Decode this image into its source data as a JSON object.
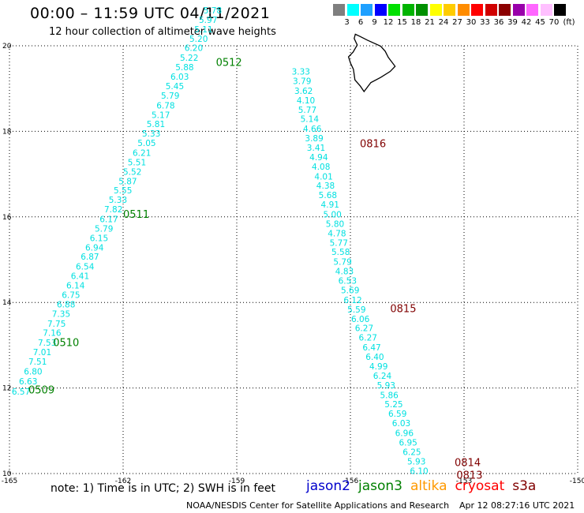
{
  "header": {
    "title": "00:00 – 11:59 UTC 04/11/2021",
    "subtitle": "12 hour collection of altimeter wave heights"
  },
  "legend": {
    "unit": "(ft)",
    "bins": [
      {
        "label": "3",
        "color": "#7f7f7f"
      },
      {
        "label": "6",
        "color": "#00ffff"
      },
      {
        "label": "9",
        "color": "#1ea0ff"
      },
      {
        "label": "12",
        "color": "#0000ff"
      },
      {
        "label": "15",
        "color": "#00e000"
      },
      {
        "label": "18",
        "color": "#00b400"
      },
      {
        "label": "21",
        "color": "#009000"
      },
      {
        "label": "24",
        "color": "#ffff00"
      },
      {
        "label": "27",
        "color": "#ffcc00"
      },
      {
        "label": "30",
        "color": "#ff8c00"
      },
      {
        "label": "33",
        "color": "#ff0000"
      },
      {
        "label": "36",
        "color": "#d00000"
      },
      {
        "label": "39",
        "color": "#8b0000"
      },
      {
        "label": "42",
        "color": "#9900aa"
      },
      {
        "label": "45",
        "color": "#ff66ff"
      },
      {
        "label": "70",
        "color": "#ffc0ff"
      },
      {
        "label": "",
        "color": "#000000"
      }
    ]
  },
  "map": {
    "lon_range": [
      -165,
      -150
    ],
    "lat_range": [
      10,
      20
    ],
    "lon_ticks": [
      "-165",
      "-162",
      "-159",
      "-156",
      "-153",
      "-150"
    ],
    "lat_ticks": [
      "10",
      "12",
      "14",
      "16",
      "18",
      "20"
    ],
    "land": "Hawaii (Big Island)"
  },
  "tracks": [
    {
      "satellite": "jason3",
      "value_color": "#00e0e0",
      "label_color": "#008000",
      "points": [
        {
          "lon": -164.94,
          "lat": 11.92,
          "v": "6.57"
        },
        {
          "lon": -164.75,
          "lat": 12.16,
          "v": "6.63"
        },
        {
          "lon": -164.62,
          "lat": 12.39,
          "v": "6.80"
        },
        {
          "lon": -164.5,
          "lat": 12.62,
          "v": "7.51"
        },
        {
          "lon": -164.38,
          "lat": 12.84,
          "v": "7.01"
        },
        {
          "lon": -164.25,
          "lat": 13.06,
          "v": "7.53"
        },
        {
          "lon": -164.12,
          "lat": 13.29,
          "v": "7.16"
        },
        {
          "lon": -164.0,
          "lat": 13.51,
          "v": "7.75"
        },
        {
          "lon": -163.88,
          "lat": 13.74,
          "v": "7.35"
        },
        {
          "lon": -163.75,
          "lat": 13.96,
          "v": "6.88"
        },
        {
          "lon": -163.62,
          "lat": 14.18,
          "v": "6.75"
        },
        {
          "lon": -163.5,
          "lat": 14.4,
          "v": "6.14"
        },
        {
          "lon": -163.38,
          "lat": 14.62,
          "v": "6.41"
        },
        {
          "lon": -163.25,
          "lat": 14.84,
          "v": "6.54"
        },
        {
          "lon": -163.12,
          "lat": 15.07,
          "v": "6.87"
        },
        {
          "lon": -163.0,
          "lat": 15.29,
          "v": "6.94"
        },
        {
          "lon": -162.88,
          "lat": 15.51,
          "v": "6.15"
        },
        {
          "lon": -162.75,
          "lat": 15.73,
          "v": "5.79"
        },
        {
          "lon": -162.62,
          "lat": 15.95,
          "v": "6.17"
        },
        {
          "lon": -162.5,
          "lat": 16.18,
          "v": "7.82"
        },
        {
          "lon": -162.38,
          "lat": 16.4,
          "v": "5.33"
        },
        {
          "lon": -162.25,
          "lat": 16.62,
          "v": "5.55"
        },
        {
          "lon": -162.12,
          "lat": 16.84,
          "v": "5.87"
        },
        {
          "lon": -162.0,
          "lat": 17.06,
          "v": "5.52"
        },
        {
          "lon": -161.88,
          "lat": 17.28,
          "v": "5.51"
        },
        {
          "lon": -161.75,
          "lat": 17.5,
          "v": "6.21"
        },
        {
          "lon": -161.62,
          "lat": 17.73,
          "v": "5.05"
        },
        {
          "lon": -161.5,
          "lat": 17.95,
          "v": "5.33"
        },
        {
          "lon": -161.38,
          "lat": 18.17,
          "v": "5.81"
        },
        {
          "lon": -161.25,
          "lat": 18.39,
          "v": "5.17"
        },
        {
          "lon": -161.12,
          "lat": 18.61,
          "v": "6.78"
        },
        {
          "lon": -161.0,
          "lat": 18.84,
          "v": "5.79"
        },
        {
          "lon": -160.88,
          "lat": 19.06,
          "v": "5.45"
        },
        {
          "lon": -160.75,
          "lat": 19.28,
          "v": "6.03"
        },
        {
          "lon": -160.62,
          "lat": 19.5,
          "v": "5.88"
        },
        {
          "lon": -160.5,
          "lat": 19.72,
          "v": "5.22"
        },
        {
          "lon": -160.38,
          "lat": 19.95,
          "v": "6.20"
        },
        {
          "lon": -160.25,
          "lat": 20.17,
          "v": "5.20"
        },
        {
          "lon": -160.12,
          "lat": 20.39,
          "v": "5.11"
        },
        {
          "lon": -160.0,
          "lat": 20.61,
          "v": "5.97"
        },
        {
          "lon": -159.88,
          "lat": 20.83,
          "v": "5.78"
        }
      ],
      "times": [
        {
          "label": "0509",
          "lon": -164.5,
          "lat": 11.95
        },
        {
          "label": "0510",
          "lon": -163.85,
          "lat": 13.05
        },
        {
          "label": "0511",
          "lon": -162.0,
          "lat": 16.05
        },
        {
          "label": "0512",
          "lon": -159.55,
          "lat": 19.6
        }
      ]
    },
    {
      "satellite": "s3a",
      "value_color": "#00e0e0",
      "label_color": "#800000",
      "points": [
        {
          "lon": -154.43,
          "lat": 10.06,
          "v": "6.10"
        },
        {
          "lon": -154.5,
          "lat": 10.29,
          "v": "5.93"
        },
        {
          "lon": -154.62,
          "lat": 10.51,
          "v": "6.25"
        },
        {
          "lon": -154.72,
          "lat": 10.73,
          "v": "6.95"
        },
        {
          "lon": -154.82,
          "lat": 10.95,
          "v": "6.96"
        },
        {
          "lon": -154.9,
          "lat": 11.18,
          "v": "6.03"
        },
        {
          "lon": -155.0,
          "lat": 11.4,
          "v": "6.59"
        },
        {
          "lon": -155.1,
          "lat": 11.62,
          "v": "5.25"
        },
        {
          "lon": -155.22,
          "lat": 11.84,
          "v": "5.86"
        },
        {
          "lon": -155.3,
          "lat": 12.07,
          "v": "5.93"
        },
        {
          "lon": -155.4,
          "lat": 12.29,
          "v": "6.24"
        },
        {
          "lon": -155.5,
          "lat": 12.51,
          "v": "4.99"
        },
        {
          "lon": -155.6,
          "lat": 12.73,
          "v": "6.40"
        },
        {
          "lon": -155.68,
          "lat": 12.95,
          "v": "6.47"
        },
        {
          "lon": -155.78,
          "lat": 13.18,
          "v": "6.27"
        },
        {
          "lon": -155.88,
          "lat": 13.4,
          "v": "6.27"
        },
        {
          "lon": -155.98,
          "lat": 13.62,
          "v": "6.06"
        },
        {
          "lon": -156.08,
          "lat": 13.84,
          "v": "5.59"
        },
        {
          "lon": -156.18,
          "lat": 14.06,
          "v": "6.12"
        },
        {
          "lon": -156.25,
          "lat": 14.29,
          "v": "5.69"
        },
        {
          "lon": -156.32,
          "lat": 14.51,
          "v": "6.53"
        },
        {
          "lon": -156.4,
          "lat": 14.73,
          "v": "4.83"
        },
        {
          "lon": -156.45,
          "lat": 14.95,
          "v": "5.79"
        },
        {
          "lon": -156.5,
          "lat": 15.18,
          "v": "5.58"
        },
        {
          "lon": -156.55,
          "lat": 15.4,
          "v": "5.77"
        },
        {
          "lon": -156.6,
          "lat": 15.62,
          "v": "4.78"
        },
        {
          "lon": -156.65,
          "lat": 15.84,
          "v": "5.80"
        },
        {
          "lon": -156.72,
          "lat": 16.06,
          "v": "5.00"
        },
        {
          "lon": -156.78,
          "lat": 16.29,
          "v": "4.91"
        },
        {
          "lon": -156.84,
          "lat": 16.51,
          "v": "5.68"
        },
        {
          "lon": -156.9,
          "lat": 16.73,
          "v": "4.38"
        },
        {
          "lon": -156.95,
          "lat": 16.95,
          "v": "4.01"
        },
        {
          "lon": -157.02,
          "lat": 17.18,
          "v": "4.08"
        },
        {
          "lon": -157.08,
          "lat": 17.4,
          "v": "4.94"
        },
        {
          "lon": -157.15,
          "lat": 17.62,
          "v": "3.41"
        },
        {
          "lon": -157.2,
          "lat": 17.84,
          "v": "3.89"
        },
        {
          "lon": -157.25,
          "lat": 18.06,
          "v": "4.66"
        },
        {
          "lon": -157.32,
          "lat": 18.29,
          "v": "5.14"
        },
        {
          "lon": -157.38,
          "lat": 18.51,
          "v": "5.77"
        },
        {
          "lon": -157.42,
          "lat": 18.73,
          "v": "4.10"
        },
        {
          "lon": -157.48,
          "lat": 18.95,
          "v": "3.62"
        },
        {
          "lon": -157.52,
          "lat": 19.18,
          "v": "3.79"
        },
        {
          "lon": -157.55,
          "lat": 19.4,
          "v": "3.33"
        }
      ],
      "times": [
        {
          "label": "0813",
          "lon": -153.2,
          "lat": 9.95
        },
        {
          "label": "0814",
          "lon": -153.25,
          "lat": 10.25
        },
        {
          "label": "0815",
          "lon": -154.95,
          "lat": 13.85
        },
        {
          "label": "0816",
          "lon": -155.75,
          "lat": 17.7
        }
      ]
    }
  ],
  "footer": {
    "note": "note:  1) Time is in UTC;  2) SWH is in feet",
    "satellites": [
      {
        "name": "jason2",
        "color": "#0000cc"
      },
      {
        "name": "jason3",
        "color": "#008000"
      },
      {
        "name": "altika",
        "color": "#ff9900"
      },
      {
        "name": "cryosat",
        "color": "#ff0000"
      },
      {
        "name": "s3a",
        "color": "#800000"
      }
    ],
    "credit": "NOAA/NESDIS Center for Satellite Applications and Research",
    "timestamp": "Apr 12 08:27:16 UTC 2021"
  }
}
